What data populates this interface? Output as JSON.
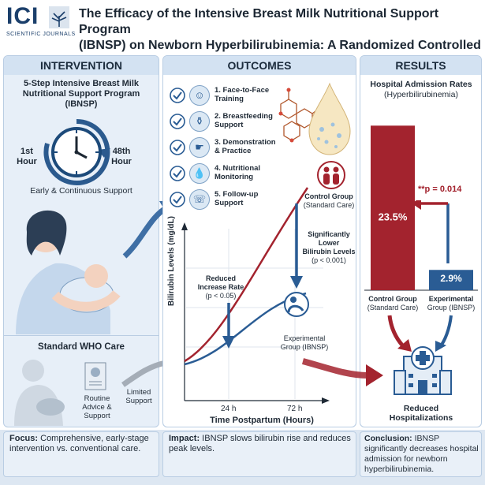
{
  "header": {
    "logo_main": "ICI",
    "logo_sub": "SCIENTIFIC JOURNALS",
    "title_line1": "The Efficacy of the Intensive Breast Milk Nutritional Support Program",
    "title_line2": "(IBNSP) on Newborn Hyperbilirubinemia: A Randomized Controlled Trial"
  },
  "intervention": {
    "heading": "INTERVENTION",
    "program_line1": "5-Step Intensive Breast Milk",
    "program_line2": "Nutritional Support Program",
    "program_line3": "(IBNSP)",
    "clock_start_line1": "1st",
    "clock_start_line2": "Hour",
    "clock_end_line1": "48th",
    "clock_end_line2": "Hour",
    "support_label": "Early & Continuous Support",
    "who_heading": "Standard WHO Care",
    "routine_line1": "Routine",
    "routine_line2": "Advice &",
    "routine_line3": "Support",
    "limited_line1": "Limited",
    "limited_line2": "Support"
  },
  "outcomes": {
    "heading": "OUTCOMES",
    "steps": [
      {
        "line1": "1. Face-to-Face",
        "line2": "Training",
        "icon": "face-to-face-icon"
      },
      {
        "line1": "2. Breastfeeding",
        "line2": "Support",
        "icon": "bottle-icon"
      },
      {
        "line1": "3. Demonstration",
        "line2": "& Practice",
        "icon": "demonstration-icon"
      },
      {
        "line1": "4. Nutritional",
        "line2": "Monitoring",
        "icon": "drop-icon"
      },
      {
        "line1": "5. Follow-up",
        "line2": "Support",
        "icon": "phone-icon"
      }
    ],
    "chart": {
      "ylabel": "Bilirubin Levels (mg/dL)",
      "xlabel": "Time Postpartum (Hours)",
      "xticks": [
        "24 h",
        "72 h"
      ],
      "control_label_line1": "Control Group",
      "control_label_line2": "(Standard Care)",
      "experimental_label_line1": "Experimental",
      "experimental_label_line2": "Group (IBNSP)",
      "sig_line1": "Significantly",
      "sig_line2": "Lower",
      "sig_line3": "Bilirubin Levels",
      "sig_line4": "(p < 0.001)",
      "reduced_line1": "Reduced",
      "reduced_line2": "Increase Rate",
      "reduced_line3": "(p < 0.05)",
      "control_color": "#a3232e",
      "experimental_color": "#2a5c94"
    }
  },
  "results": {
    "heading": "RESULTS",
    "sub_line1": "Hospital Admission Rates",
    "sub_line2": "(Hyperbilirubinemia)",
    "chart_data": {
      "type": "bar",
      "categories": [
        "Control Group (Standard Care)",
        "Experimental Group (IBNSP)"
      ],
      "values": [
        23.5,
        2.9
      ],
      "value_labels": [
        "23.5%",
        "2.9%"
      ],
      "ylim": [
        0,
        25
      ],
      "colors": [
        "#a3232e",
        "#2a5c94"
      ]
    },
    "control_label_line1": "Control Group",
    "control_label_line2": "(Standard Care)",
    "experimental_label_line1": "Experimental",
    "experimental_label_line2": "Group (IBNSP)",
    "pvalue": "**p = 0.014",
    "reduced_line1": "Reduced",
    "reduced_line2": "Hospitalizations"
  },
  "footer": {
    "focus_label": "Focus:",
    "focus_text": " Comprehensive, early-stage intervention vs. conventional care.",
    "impact_label": "Impact:",
    "impact_text": " IBNSP slows bilirubin rise and reduces peak levels.",
    "conclusion_label": "Conclusion:",
    "conclusion_text": " IBNSP significantly decreases hospital admission for newborn hyperbilirubinemia."
  }
}
